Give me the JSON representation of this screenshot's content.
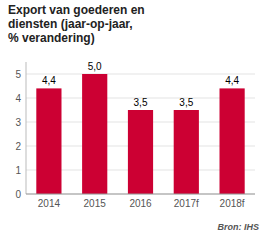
{
  "chart_data": {
    "type": "bar",
    "title": "Export van goederen en\ndiensten (jaar-op-jaar,\n% verandering)",
    "categories": [
      "2014",
      "2015",
      "2016",
      "2017f",
      "2018f"
    ],
    "values": [
      4.4,
      5.0,
      3.5,
      3.5,
      4.4
    ],
    "value_labels": [
      "4,4",
      "5,0",
      "3,5",
      "3,5",
      "4,4"
    ],
    "data_labels": true,
    "color": "#cc0033",
    "ylim": [
      0,
      5.5
    ],
    "yticks": [
      0,
      1,
      2,
      3,
      4,
      5
    ],
    "grid": true,
    "annotations": [
      "Bron: IHS"
    ]
  }
}
